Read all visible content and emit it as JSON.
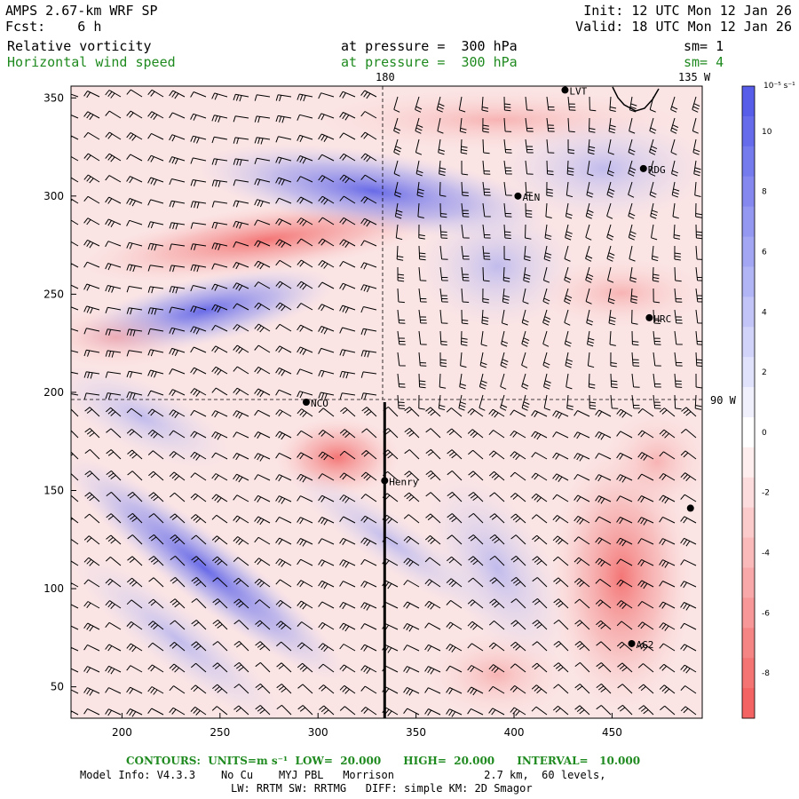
{
  "header": {
    "model_title": "AMPS 2.67-km WRF SP",
    "forecast": "Fcst:    6 h",
    "init": "Init: 12 UTC Mon 12 Jan 26",
    "valid": "Valid: 18 UTC Mon 12 Jan 26",
    "field1_name": "Relative vorticity",
    "field1_level": "at pressure =  300 hPa",
    "field1_sm": "sm= 1",
    "field2_name": "Horizontal wind speed",
    "field2_level": "at pressure =  300 hPa",
    "field2_sm": "sm= 4"
  },
  "map": {
    "top_labels": [
      "180",
      "135 W"
    ],
    "right_label": "90 W",
    "stations": [
      {
        "name": "LVT",
        "x": 426,
        "y": 354
      },
      {
        "name": "RDG",
        "x": 466,
        "y": 314
      },
      {
        "name": "ALN",
        "x": 402,
        "y": 300
      },
      {
        "name": "HRC",
        "x": 469,
        "y": 238
      },
      {
        "name": "NCO",
        "x": 294,
        "y": 195
      },
      {
        "name": "Henry",
        "x": 334,
        "y": 155
      },
      {
        "name": "AG2",
        "x": 460,
        "y": 72
      },
      {
        "name": "",
        "x": 490,
        "y": 141
      }
    ],
    "cross_section": {
      "x": 334,
      "y_from": 34,
      "y_to": 195
    }
  },
  "axes": {
    "x_ticks": [
      200,
      250,
      300,
      350,
      400,
      450
    ],
    "y_ticks": [
      50,
      100,
      150,
      200,
      250,
      300,
      350
    ],
    "xlim": [
      174,
      496
    ],
    "ylim": [
      34,
      356
    ]
  },
  "colorbar": {
    "unit_label": "10⁻⁵ s⁻¹",
    "ticks": [
      10,
      8,
      6,
      4,
      2,
      0,
      -2,
      -4,
      -6,
      -8
    ],
    "range": [
      -9.5,
      11.5
    ],
    "positive_color": "#4f55e8",
    "negative_color": "#f25a5a"
  },
  "footer": {
    "contours": "CONTOURS:  UNITS=m s⁻¹  LOW=  20.000      HIGH=  20.000      INTERVAL=   10.000",
    "model_info": "Model Info: V4.3.3    No Cu    MYJ PBL   Morrison              2.7 km,  60 levels,",
    "physics": "LW: RRTM SW: RRTMG   DIFF: simple KM: 2D Smagor"
  }
}
